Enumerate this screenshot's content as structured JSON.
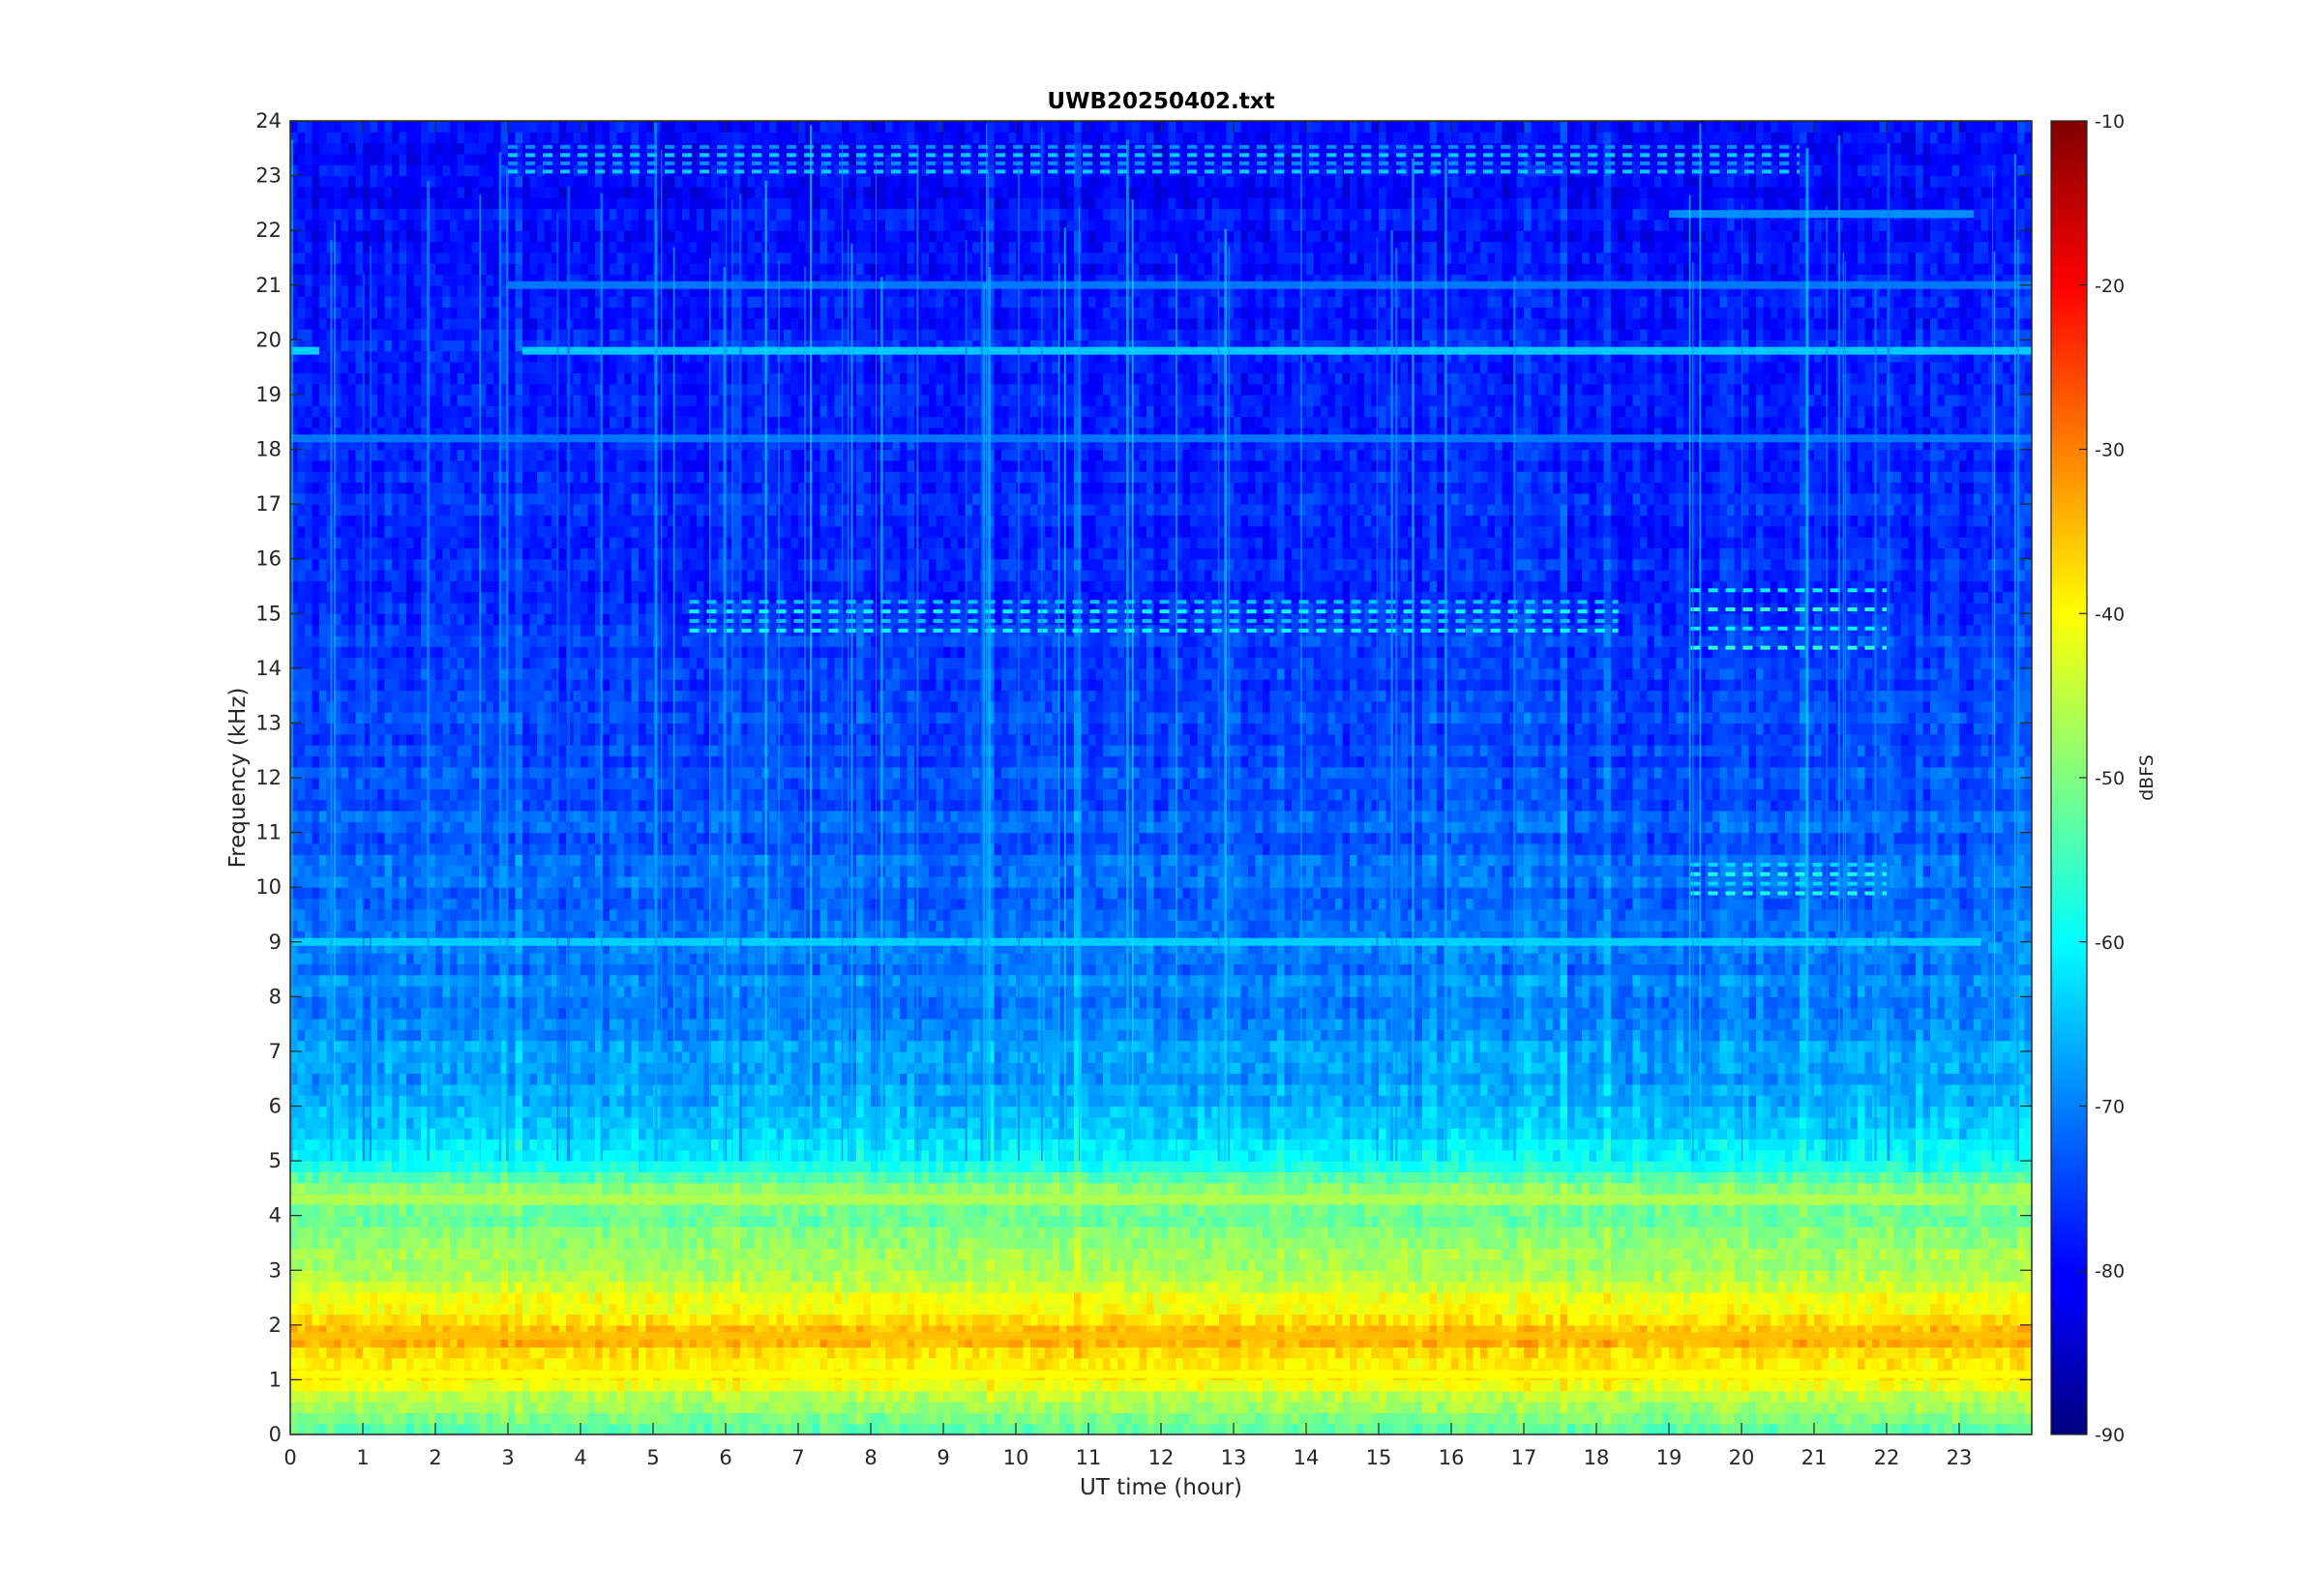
{
  "chart_data": {
    "type": "heatmap",
    "title": "UWB20250402.txt",
    "xlabel": "UT time (hour)",
    "ylabel": "Frequency (kHz)",
    "colorbar_label": "dBFS",
    "xlim": [
      0,
      24
    ],
    "ylim": [
      0,
      24
    ],
    "clim": [
      -90,
      -10
    ],
    "colormap": "jet",
    "x_ticks": [
      "0",
      "1",
      "2",
      "3",
      "4",
      "5",
      "6",
      "7",
      "8",
      "9",
      "10",
      "11",
      "12",
      "13",
      "14",
      "15",
      "16",
      "17",
      "18",
      "19",
      "20",
      "21",
      "22",
      "23"
    ],
    "y_ticks": [
      "0",
      "1",
      "2",
      "3",
      "4",
      "5",
      "6",
      "7",
      "8",
      "9",
      "10",
      "11",
      "12",
      "13",
      "14",
      "15",
      "16",
      "17",
      "18",
      "19",
      "20",
      "21",
      "22",
      "23",
      "24"
    ],
    "colorbar_ticks": [
      "-90",
      "-80",
      "-70",
      "-60",
      "-50",
      "-40",
      "-30",
      "-20",
      "-10"
    ],
    "frequency_profile_dBFS": [
      {
        "freq_khz": 0.0,
        "level": -55
      },
      {
        "freq_khz": 0.5,
        "level": -48
      },
      {
        "freq_khz": 1.0,
        "level": -40
      },
      {
        "freq_khz": 1.2,
        "level": -38
      },
      {
        "freq_khz": 1.6,
        "level": -36
      },
      {
        "freq_khz": 1.8,
        "level": -33
      },
      {
        "freq_khz": 2.2,
        "level": -40
      },
      {
        "freq_khz": 3.0,
        "level": -46
      },
      {
        "freq_khz": 4.0,
        "level": -52
      },
      {
        "freq_khz": 4.3,
        "level": -47
      },
      {
        "freq_khz": 5.0,
        "level": -60
      },
      {
        "freq_khz": 6.0,
        "level": -66
      },
      {
        "freq_khz": 8.0,
        "level": -70
      },
      {
        "freq_khz": 12.0,
        "level": -74
      },
      {
        "freq_khz": 16.0,
        "level": -77
      },
      {
        "freq_khz": 20.0,
        "level": -78
      },
      {
        "freq_khz": 24.0,
        "level": -80
      }
    ],
    "tonal_lines": [
      {
        "freq_khz": 19.8,
        "start_hour": 3.2,
        "end_hour": 24.0,
        "level": -63
      },
      {
        "freq_khz": 19.8,
        "start_hour": 0.0,
        "end_hour": 0.4,
        "level": -62
      },
      {
        "freq_khz": 18.2,
        "start_hour": 0.0,
        "end_hour": 24.0,
        "level": -70
      },
      {
        "freq_khz": 21.0,
        "start_hour": 3.0,
        "end_hour": 24.0,
        "level": -70
      },
      {
        "freq_khz": 22.3,
        "start_hour": 19.0,
        "end_hour": 23.2,
        "level": -68
      },
      {
        "freq_khz": 9.0,
        "start_hour": 0.0,
        "end_hour": 23.3,
        "level": -63
      },
      {
        "freq_khz": 4.3,
        "start_hour": 0.0,
        "end_hour": 23.0,
        "level": -46
      },
      {
        "freq_khz": 1.8,
        "start_hour": 0.0,
        "end_hour": 24.0,
        "level": -35
      },
      {
        "freq_khz": 1.1,
        "start_hour": 0.0,
        "end_hour": 24.0,
        "level": -40
      }
    ],
    "pulsed_bands": [
      {
        "freq_khz": [
          14.6,
          15.3
        ],
        "start_hour": 5.5,
        "end_hour": 18.3,
        "level": -62
      },
      {
        "freq_khz": [
          14.2,
          15.6
        ],
        "start_hour": 19.3,
        "end_hour": 22.0,
        "level": -58
      },
      {
        "freq_khz": [
          9.8,
          10.5
        ],
        "start_hour": 19.3,
        "end_hour": 22.0,
        "level": -60
      },
      {
        "freq_khz": [
          23.0,
          23.6
        ],
        "start_hour": 3.0,
        "end_hour": 20.8,
        "level": -66
      }
    ]
  }
}
